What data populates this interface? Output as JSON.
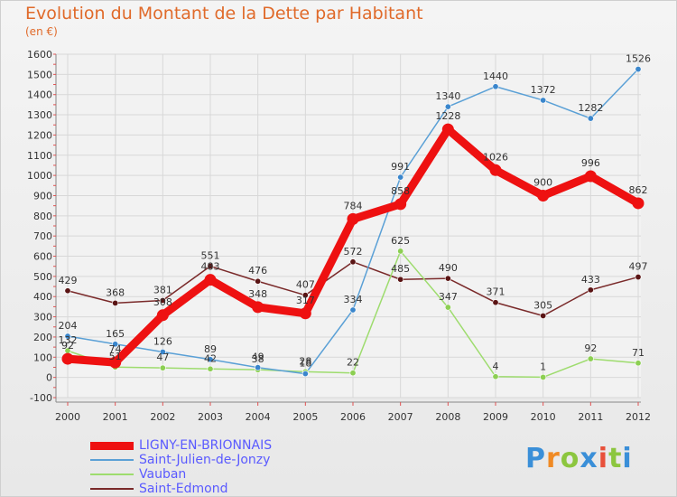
{
  "title": "Evolution du Montant de la Dette par Habitant",
  "subtitle": "(en €)",
  "logo": {
    "text": "Proxiti",
    "colors": [
      "#3a8fd8",
      "#f08a24",
      "#8cc63f",
      "#3a8fd8",
      "#e8503a",
      "#8cc63f",
      "#3a8fd8"
    ]
  },
  "chart_data": {
    "type": "line",
    "categories": [
      "2000",
      "2001",
      "2002",
      "2003",
      "2004",
      "2005",
      "2006",
      "2007",
      "2008",
      "2009",
      "2010",
      "2011",
      "2012"
    ],
    "ylim": [
      -100,
      1600
    ],
    "yticks": [
      "-100",
      "0",
      "100",
      "200",
      "300",
      "400",
      "500",
      "600",
      "700",
      "800",
      "900",
      "1000",
      "1100",
      "1200",
      "1300",
      "1400",
      "1500",
      "1600"
    ],
    "grid": true,
    "legend_position": "bottom-left",
    "series": [
      {
        "name": "LIGNY-EN-BRIONNAIS",
        "color": "#ee1111",
        "marker": "#ee1111",
        "values": [
          92,
          74,
          308,
          483,
          348,
          317,
          784,
          858,
          1228,
          1026,
          900,
          996,
          862
        ],
        "labels": [
          "92",
          "74",
          "308",
          "483",
          "348",
          "317",
          "784",
          "858",
          "1228",
          "1026",
          "900",
          "996",
          "862"
        ]
      },
      {
        "name": "Saint-Julien-de-Jonzy",
        "color": "#5aa0d6",
        "marker": "#3a86cc",
        "values": [
          204,
          165,
          126,
          89,
          49,
          18,
          334,
          991,
          1340,
          1440,
          1372,
          1282,
          1526
        ],
        "labels": [
          "204",
          "165",
          "126",
          "89",
          "49",
          "18",
          "334",
          "991",
          "1340",
          "1440",
          "1372",
          "1282",
          "1526"
        ]
      },
      {
        "name": "Vauban",
        "color": "#9edc6e",
        "marker": "#8ccf52",
        "values": [
          132,
          51,
          47,
          42,
          38,
          28,
          22,
          625,
          347,
          4,
          1,
          92,
          71
        ],
        "labels": [
          "132",
          "51",
          "47",
          "42",
          "38",
          "28",
          "22",
          "625",
          "347",
          "4",
          "1",
          "92",
          "71"
        ]
      },
      {
        "name": "Saint-Edmond",
        "color": "#7a2a2a",
        "marker": "#5a1414",
        "values": [
          429,
          368,
          381,
          551,
          476,
          407,
          572,
          485,
          490,
          371,
          305,
          433,
          497
        ],
        "labels": [
          "429",
          "368",
          "381",
          "551",
          "476",
          "407",
          "572",
          "485",
          "490",
          "371",
          "305",
          "433",
          "497"
        ]
      }
    ]
  }
}
